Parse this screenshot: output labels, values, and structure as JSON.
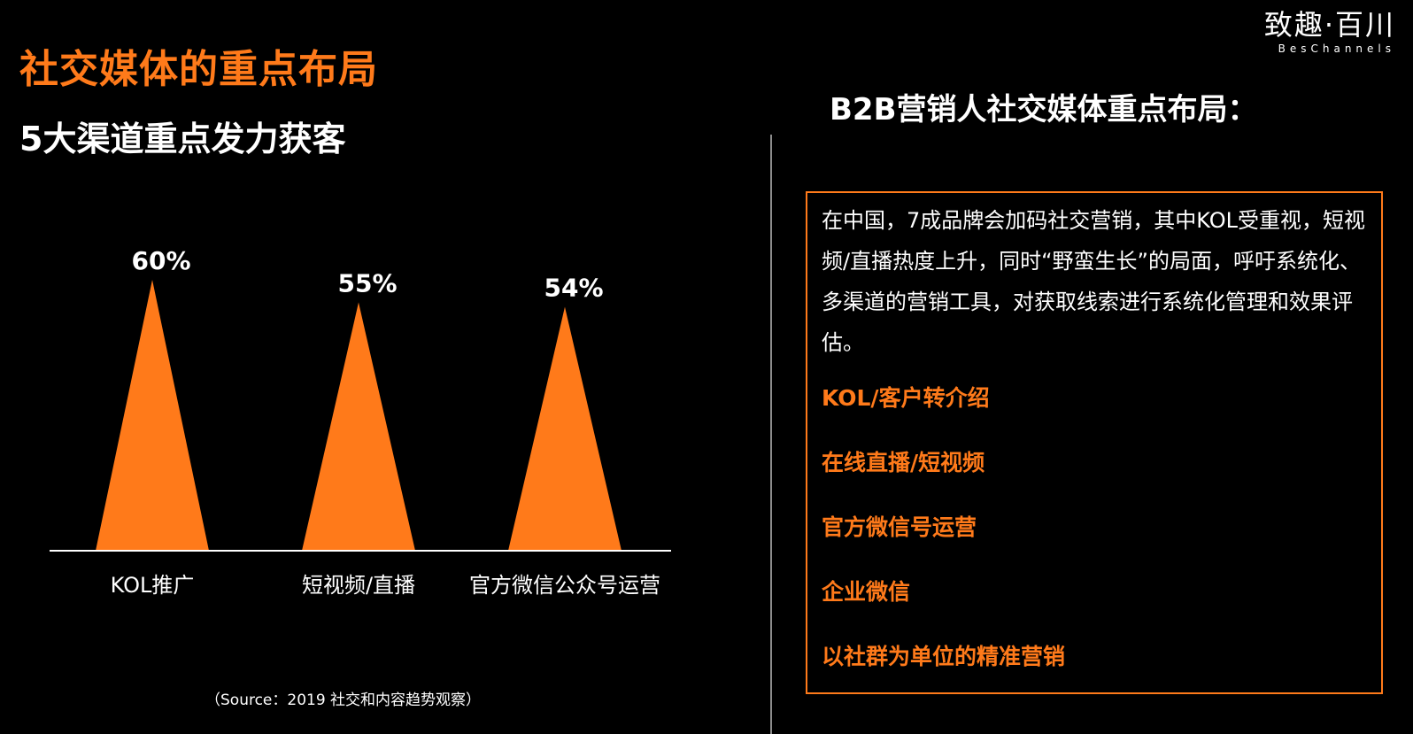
{
  "header": {
    "title": "社交媒体的重点布局",
    "subtitle": "5大渠道重点发力获客"
  },
  "logo": {
    "cn": "致趣·百川",
    "en": "BesChannels"
  },
  "colors": {
    "accent": "#ff7a1a",
    "background": "#000000",
    "text": "#ffffff",
    "divider": "#8c8c8c"
  },
  "chart_data": {
    "type": "bar",
    "categories": [
      "KOL推广",
      "短视频/直播",
      "官方微信公众号运营"
    ],
    "values": [
      60,
      55,
      54
    ],
    "data_labels": [
      "60%",
      "55%",
      "54%"
    ],
    "mark_shape": "triangle",
    "ylim": [
      0,
      60
    ],
    "grid": false,
    "color": "#ff7a1a"
  },
  "source": "（Source：2019 社交和内容趋势观察）",
  "right_panel": {
    "heading": "B2B营销人社交媒体重点布局：",
    "intro": "在中国，7成品牌会加码社交营销，其中KOL受重视，短视频/直播热度上升，同时“野蛮生长”的局面，呼吁系统化、多渠道的营销工具，对获取线索进行系统化管理和效果评估。",
    "points": [
      "KOL/客户转介绍",
      "在线直播/短视频",
      "官方微信号运营",
      "企业微信",
      "以社群为单位的精准营销"
    ]
  }
}
